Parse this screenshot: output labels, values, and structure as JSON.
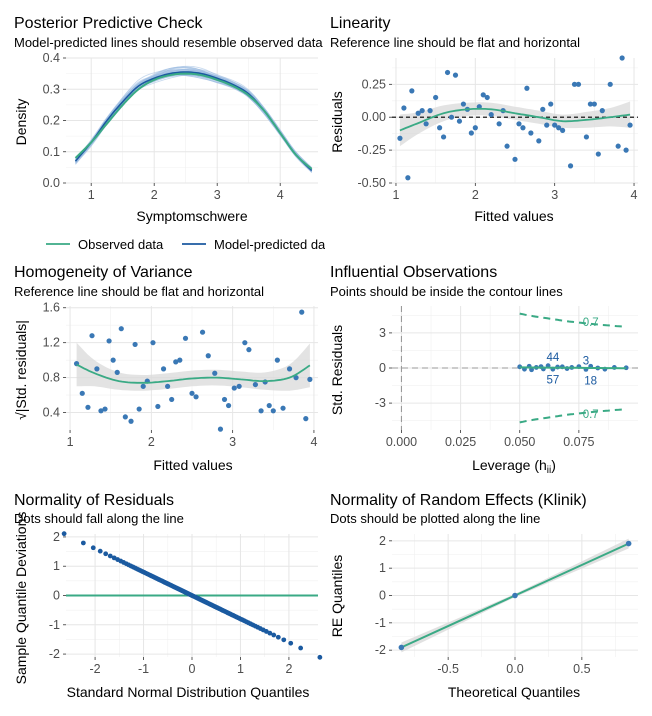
{
  "colors": {
    "green": "#3aaa85",
    "blue": "#1b5aa0",
    "point": "#3a78b5",
    "lightblue": "#9ebde2",
    "band": "#dadada",
    "grid": "#e6e6e6"
  },
  "chart_data": [
    {
      "type": "line",
      "title": "Posterior Predictive Check",
      "subtitle": "Model-predicted lines should resemble observed data line",
      "xlabel": "Symptomschwere",
      "ylabel": "Density",
      "xlim": [
        0.6,
        4.6
      ],
      "ylim": [
        0,
        0.4
      ],
      "xticks": [
        "1",
        "2",
        "3",
        "4"
      ],
      "yticks": [
        "0.0",
        "0.1",
        "0.2",
        "0.3",
        "0.4"
      ],
      "legend_position": "bottom",
      "series": [
        {
          "name": "Observed data",
          "color": "#3aaa85",
          "x": [
            0.75,
            1.0,
            1.25,
            1.5,
            1.75,
            2.0,
            2.25,
            2.5,
            2.75,
            3.0,
            3.25,
            3.5,
            3.75,
            4.0,
            4.25,
            4.5
          ],
          "y": [
            0.08,
            0.13,
            0.19,
            0.25,
            0.3,
            0.33,
            0.345,
            0.35,
            0.345,
            0.33,
            0.31,
            0.28,
            0.23,
            0.16,
            0.09,
            0.045
          ]
        },
        {
          "name": "Model-predicted data",
          "color": "#1b5aa0",
          "x": [
            0.75,
            1.0,
            1.25,
            1.5,
            1.75,
            2.0,
            2.25,
            2.5,
            2.75,
            3.0,
            3.25,
            3.5,
            3.75,
            4.0,
            4.25,
            4.5
          ],
          "y": [
            0.07,
            0.13,
            0.2,
            0.26,
            0.31,
            0.335,
            0.35,
            0.355,
            0.35,
            0.335,
            0.315,
            0.285,
            0.23,
            0.16,
            0.09,
            0.04
          ]
        }
      ],
      "legend": [
        "Observed data",
        "Model-predicted data"
      ]
    },
    {
      "type": "scatter",
      "title": "Linearity",
      "subtitle": "Reference line should be flat and horizontal",
      "xlabel": "Fitted values",
      "ylabel": "Residuals",
      "xlim": [
        0.95,
        4.05
      ],
      "ylim": [
        -0.5,
        0.45
      ],
      "xticks": [
        "1",
        "2",
        "3",
        "4"
      ],
      "yticks": [
        "-0.50",
        "-0.25",
        "0.00",
        "0.25"
      ],
      "points_x": [
        1.05,
        1.1,
        1.15,
        1.2,
        1.28,
        1.33,
        1.38,
        1.43,
        1.5,
        1.55,
        1.6,
        1.65,
        1.7,
        1.75,
        1.8,
        1.85,
        1.9,
        1.95,
        2.0,
        2.05,
        2.1,
        2.15,
        2.2,
        2.3,
        2.35,
        2.4,
        2.5,
        2.55,
        2.6,
        2.65,
        2.7,
        2.8,
        2.85,
        2.9,
        2.95,
        3.0,
        3.05,
        3.1,
        3.2,
        3.25,
        3.3,
        3.4,
        3.45,
        3.5,
        3.55,
        3.6,
        3.7,
        3.8,
        3.85,
        3.9,
        3.95
      ],
      "points_y": [
        -0.16,
        0.07,
        -0.46,
        0.2,
        0.03,
        0.05,
        -0.05,
        0.05,
        0.15,
        -0.08,
        -0.15,
        0.34,
        0.0,
        0.32,
        -0.03,
        0.1,
        0.06,
        -0.12,
        -0.08,
        0.08,
        0.17,
        0.15,
        0.02,
        -0.05,
        0.05,
        -0.22,
        -0.32,
        -0.05,
        -0.08,
        0.22,
        -0.12,
        -0.18,
        0.06,
        -0.06,
        0.1,
        -0.06,
        -0.08,
        -0.1,
        -0.37,
        0.25,
        0.25,
        -0.15,
        0.1,
        0.1,
        -0.28,
        0.05,
        0.25,
        -0.22,
        0.45,
        -0.25,
        -0.06
      ],
      "smooth_x": [
        1.05,
        1.3,
        1.6,
        1.9,
        2.2,
        2.5,
        2.8,
        3.1,
        3.4,
        3.7,
        3.95
      ],
      "smooth_y": [
        -0.1,
        -0.04,
        0.03,
        0.06,
        0.06,
        0.03,
        0.0,
        -0.03,
        -0.02,
        0.0,
        0.02
      ],
      "band_se": [
        0.12,
        0.08,
        0.06,
        0.05,
        0.05,
        0.05,
        0.05,
        0.05,
        0.06,
        0.07,
        0.1
      ],
      "reference_y": 0
    },
    {
      "type": "scatter",
      "title": "Homogeneity of Variance",
      "subtitle": "Reference line should be flat and horizontal",
      "xlabel": "Fitted values",
      "ylabel": "√|Std. residuals|",
      "xlim": [
        0.95,
        4.05
      ],
      "ylim": [
        0.2,
        1.62
      ],
      "xticks": [
        "1",
        "2",
        "3",
        "4"
      ],
      "yticks": [
        "0.4",
        "0.8",
        "1.2",
        "1.6"
      ],
      "points_x": [
        1.08,
        1.15,
        1.22,
        1.27,
        1.33,
        1.38,
        1.43,
        1.48,
        1.53,
        1.58,
        1.63,
        1.68,
        1.75,
        1.8,
        1.85,
        1.9,
        1.95,
        2.02,
        2.08,
        2.15,
        2.2,
        2.25,
        2.3,
        2.35,
        2.42,
        2.5,
        2.55,
        2.63,
        2.7,
        2.78,
        2.85,
        2.9,
        2.95,
        3.02,
        3.08,
        3.15,
        3.2,
        3.28,
        3.35,
        3.4,
        3.45,
        3.5,
        3.55,
        3.62,
        3.7,
        3.78,
        3.85,
        3.9,
        3.95
      ],
      "points_y": [
        0.96,
        0.62,
        0.46,
        1.28,
        0.9,
        0.42,
        0.44,
        1.22,
        1.0,
        0.86,
        1.36,
        0.35,
        0.3,
        1.18,
        0.44,
        0.7,
        0.76,
        1.2,
        0.47,
        0.9,
        0.7,
        0.55,
        0.98,
        1.0,
        1.25,
        0.62,
        0.58,
        1.32,
        1.05,
        0.85,
        0.21,
        0.55,
        0.48,
        0.68,
        0.7,
        1.2,
        1.12,
        0.72,
        0.42,
        0.75,
        0.48,
        0.42,
        1.0,
        0.45,
        0.9,
        0.8,
        1.55,
        0.33,
        0.78
      ],
      "smooth_x": [
        1.08,
        1.3,
        1.6,
        1.9,
        2.2,
        2.5,
        2.8,
        3.1,
        3.4,
        3.7,
        3.95
      ],
      "smooth_y": [
        0.95,
        0.85,
        0.76,
        0.74,
        0.76,
        0.79,
        0.8,
        0.78,
        0.76,
        0.8,
        0.94
      ],
      "band_se": [
        0.25,
        0.15,
        0.1,
        0.09,
        0.09,
        0.09,
        0.09,
        0.09,
        0.1,
        0.15,
        0.25
      ]
    },
    {
      "type": "scatter",
      "title": "Influential Observations",
      "subtitle": "Points should be inside the contour lines",
      "xlabel": "Leverage (h",
      "xlabel_sub": "ii",
      "xlabel_close": ")",
      "ylabel": "Std. Residuals",
      "xlim": [
        -0.004,
        0.1
      ],
      "ylim": [
        -5.3,
        5.3
      ],
      "xticks": [
        "0.000",
        "0.025",
        "0.050",
        "0.075"
      ],
      "yticks": [
        "-3",
        "0",
        "3"
      ],
      "contour_label": "0.7",
      "contour_x": [
        0.05,
        0.055,
        0.06,
        0.065,
        0.07,
        0.075,
        0.08,
        0.085,
        0.09,
        0.095
      ],
      "contour_y": [
        4.65,
        4.45,
        4.3,
        4.15,
        4.0,
        3.88,
        3.78,
        3.68,
        3.6,
        3.52
      ],
      "points_x": [
        0.05,
        0.052,
        0.054,
        0.055,
        0.057,
        0.059,
        0.06,
        0.062,
        0.064,
        0.066,
        0.068,
        0.07,
        0.072,
        0.075,
        0.078,
        0.08,
        0.083,
        0.086,
        0.09,
        0.095
      ],
      "points_y": [
        0.1,
        -0.1,
        0.15,
        -0.15,
        0.05,
        0.12,
        -0.08,
        0.2,
        -0.1,
        0.08,
        0.1,
        -0.05,
        0.05,
        0.12,
        -0.12,
        0.15,
        0.0,
        -0.1,
        0.05,
        0.02
      ],
      "smooth_x": [
        0.05,
        0.07,
        0.095
      ],
      "smooth_y": [
        0.05,
        0.02,
        -0.02
      ],
      "point_labels": [
        {
          "text": "44",
          "x": 0.064,
          "y": 0.95
        },
        {
          "text": "3",
          "x": 0.078,
          "y": 0.65
        },
        {
          "text": "57",
          "x": 0.064,
          "y": -1.0
        },
        {
          "text": "18",
          "x": 0.08,
          "y": -1.05
        }
      ],
      "vline_x": 0,
      "hline_y": 0
    },
    {
      "type": "scatter",
      "title": "Normality of Residuals",
      "subtitle": "Dots should fall along the line",
      "xlabel": "Standard Normal Distribution Quantiles",
      "ylabel": "Sample Quantile Deviations",
      "xlim": [
        -2.6,
        2.6
      ],
      "ylim": [
        -2.1,
        2.1
      ],
      "xticks": [
        "-2",
        "-1",
        "0",
        "1",
        "2"
      ],
      "yticks": [
        "-2",
        "-1",
        "0",
        "1",
        "2"
      ],
      "reference_y": 0
    },
    {
      "type": "scatter",
      "title": "Normality of Random Effects (Klinik)",
      "subtitle": "Dots should be plotted along the line",
      "xlabel": "Theoretical Quantiles",
      "ylabel": "RE Quantiles",
      "xlim": [
        -0.92,
        0.92
      ],
      "ylim": [
        -2.25,
        2.25
      ],
      "xticks": [
        "-0.5",
        "0.0",
        "0.5"
      ],
      "yticks": [
        "-2",
        "-1",
        "0",
        "1",
        "2"
      ],
      "points_x": [
        -0.85,
        0.0,
        0.85
      ],
      "points_y": [
        -1.9,
        0.0,
        1.9
      ],
      "line_x": [
        -0.85,
        0.85
      ],
      "line_y": [
        -1.9,
        1.9
      ],
      "band_se": [
        0.18,
        0.06,
        0.18
      ]
    }
  ]
}
